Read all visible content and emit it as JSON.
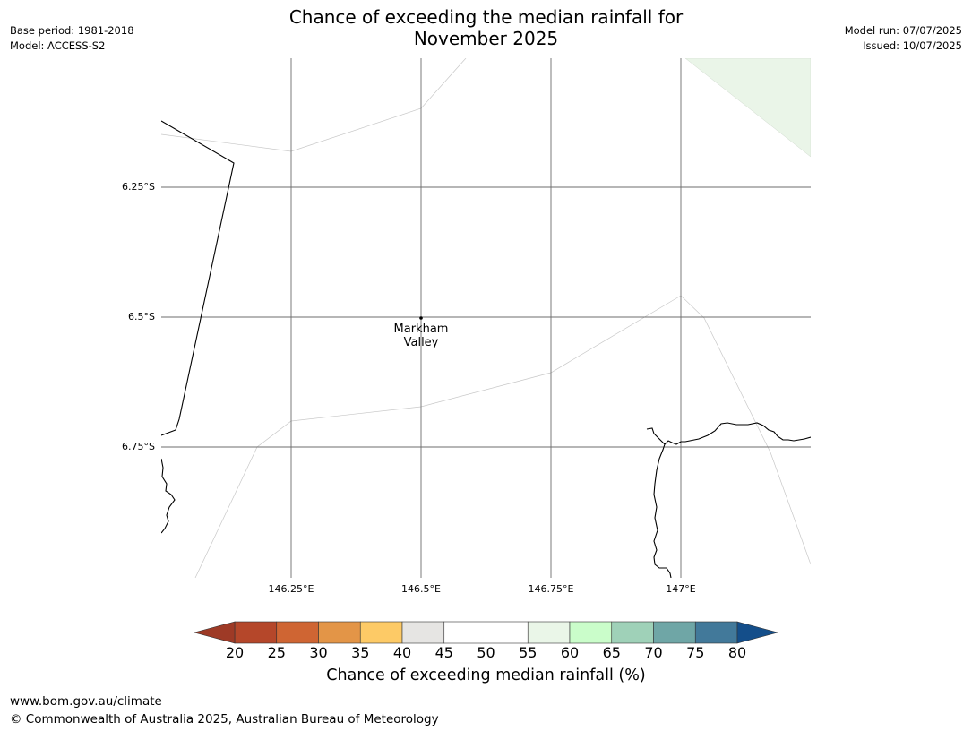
{
  "header": {
    "base_period": "Base period: 1981-2018",
    "model": "Model: ACCESS-S2",
    "model_run": "Model run: 07/07/2025",
    "issued": "Issued: 10/07/2025",
    "title_line1": "Chance of exceeding the median rainfall for",
    "title_line2": "November 2025"
  },
  "map": {
    "lat_labels": [
      "6.25°S",
      "6.5°S",
      "6.75°S"
    ],
    "lon_labels": [
      "146.25°E",
      "146.5°E",
      "146.75°E",
      "147°E"
    ],
    "place": {
      "name_line1": "Markham",
      "name_line2": "Valley"
    },
    "background_color": "#ffffff",
    "shaded_region_color": "#eaf5e8"
  },
  "colorbar": {
    "label": "Chance of exceeding median rainfall (%)",
    "ticks": [
      "20",
      "25",
      "30",
      "35",
      "40",
      "45",
      "50",
      "55",
      "60",
      "65",
      "70",
      "75",
      "80"
    ],
    "low_extend_color": "#9e3a26",
    "high_extend_color": "#144e8a",
    "colors": [
      "#b5472a",
      "#cf6533",
      "#e39547",
      "#fdca66",
      "#e6e5e3",
      "#ffffff",
      "#ffffff",
      "#eaf6e8",
      "#cafdca",
      "#9fd1b8",
      "#6fa6a6",
      "#42799a"
    ]
  },
  "footer": {
    "url": "www.bom.gov.au/climate",
    "copyright": "© Commonwealth of Australia 2025, Australian Bureau of Meteorology"
  }
}
